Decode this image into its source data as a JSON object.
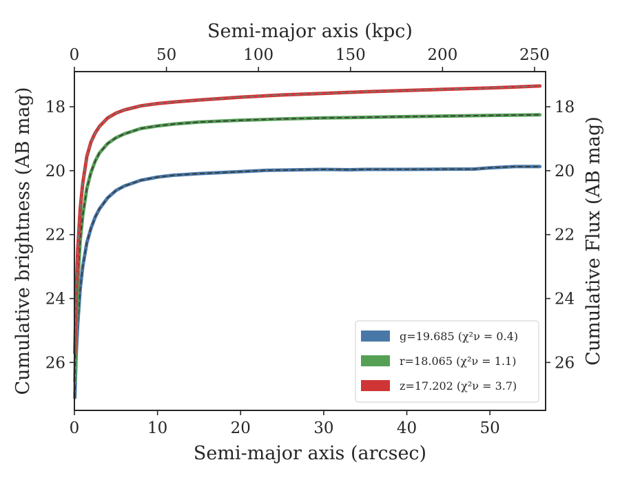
{
  "chart_data": {
    "type": "line",
    "xlabel": "Semi-major axis (arcsec)",
    "ylabel": "Cumulative brightness (AB mag)",
    "x2label": "Semi-major axis (kpc)",
    "y2label": "Cumulative Flux (AB mag)",
    "xlim": [
      0,
      56.7
    ],
    "ylim": [
      27.5,
      16.9
    ],
    "y_inverted": true,
    "x2lim": [
      0,
      256
    ],
    "xticks": [
      0,
      10,
      20,
      30,
      40,
      50
    ],
    "yticks": [
      18,
      20,
      22,
      24,
      26
    ],
    "x2ticks": [
      0,
      50,
      100,
      150,
      200,
      250
    ],
    "xtick_labels": [
      "0",
      "10",
      "20",
      "30",
      "40",
      "50"
    ],
    "ytick_labels": [
      "18",
      "20",
      "22",
      "24",
      "26"
    ],
    "x2tick_labels": [
      "0",
      "50",
      "100",
      "150",
      "200",
      "250"
    ],
    "legend_position": "lower-right",
    "grid": false,
    "series": [
      {
        "name": "g=19.685",
        "chi_label": "(χ²ν = 0.4)",
        "color": "#4878a8",
        "fit_color": "#3a3a3a",
        "x": [
          0.05,
          0.2,
          0.4,
          0.7,
          1.0,
          1.5,
          2.0,
          2.5,
          3.0,
          4.0,
          5.0,
          6.0,
          8.0,
          10.0,
          12.0,
          15.0,
          20.0,
          23.0,
          25.0,
          30.0,
          33.0,
          35.0,
          40.0,
          45.0,
          48.0,
          50.0,
          53.0,
          56.0
        ],
        "values": [
          27.1,
          25.8,
          24.8,
          23.7,
          23.0,
          22.25,
          21.8,
          21.45,
          21.2,
          20.85,
          20.62,
          20.48,
          20.3,
          20.2,
          20.14,
          20.09,
          20.03,
          19.99,
          19.98,
          19.96,
          19.97,
          19.96,
          19.96,
          19.95,
          19.95,
          19.91,
          19.87,
          19.87
        ]
      },
      {
        "name": "r=18.065",
        "chi_label": "(χ²ν = 1.1)",
        "color": "#55a055",
        "fit_color": "#3a3a3a",
        "x": [
          0.05,
          0.2,
          0.4,
          0.7,
          1.0,
          1.5,
          2.0,
          2.5,
          3.0,
          4.0,
          5.0,
          6.0,
          8.0,
          10.0,
          12.0,
          15.0,
          20.0,
          25.0,
          30.0,
          35.0,
          40.0,
          45.0,
          50.0,
          56.0
        ],
        "values": [
          26.6,
          25.0,
          23.5,
          22.2,
          21.4,
          20.55,
          20.05,
          19.7,
          19.45,
          19.15,
          18.97,
          18.85,
          18.68,
          18.6,
          18.54,
          18.48,
          18.42,
          18.38,
          18.35,
          18.33,
          18.31,
          18.29,
          18.27,
          18.25
        ]
      },
      {
        "name": "z=17.202",
        "chi_label": "(χ²ν = 3.7)",
        "color": "#d03535",
        "fit_color": "#777777",
        "x": [
          0.05,
          0.2,
          0.4,
          0.7,
          1.0,
          1.5,
          2.0,
          2.5,
          3.0,
          4.0,
          5.0,
          6.0,
          8.0,
          10.0,
          12.0,
          15.0,
          20.0,
          25.0,
          30.0,
          35.0,
          40.0,
          45.0,
          50.0,
          56.0
        ],
        "values": [
          25.7,
          24.0,
          22.5,
          21.2,
          20.4,
          19.55,
          19.1,
          18.82,
          18.62,
          18.35,
          18.2,
          18.1,
          17.97,
          17.9,
          17.85,
          17.79,
          17.7,
          17.63,
          17.58,
          17.53,
          17.49,
          17.45,
          17.41,
          17.35
        ]
      }
    ]
  }
}
